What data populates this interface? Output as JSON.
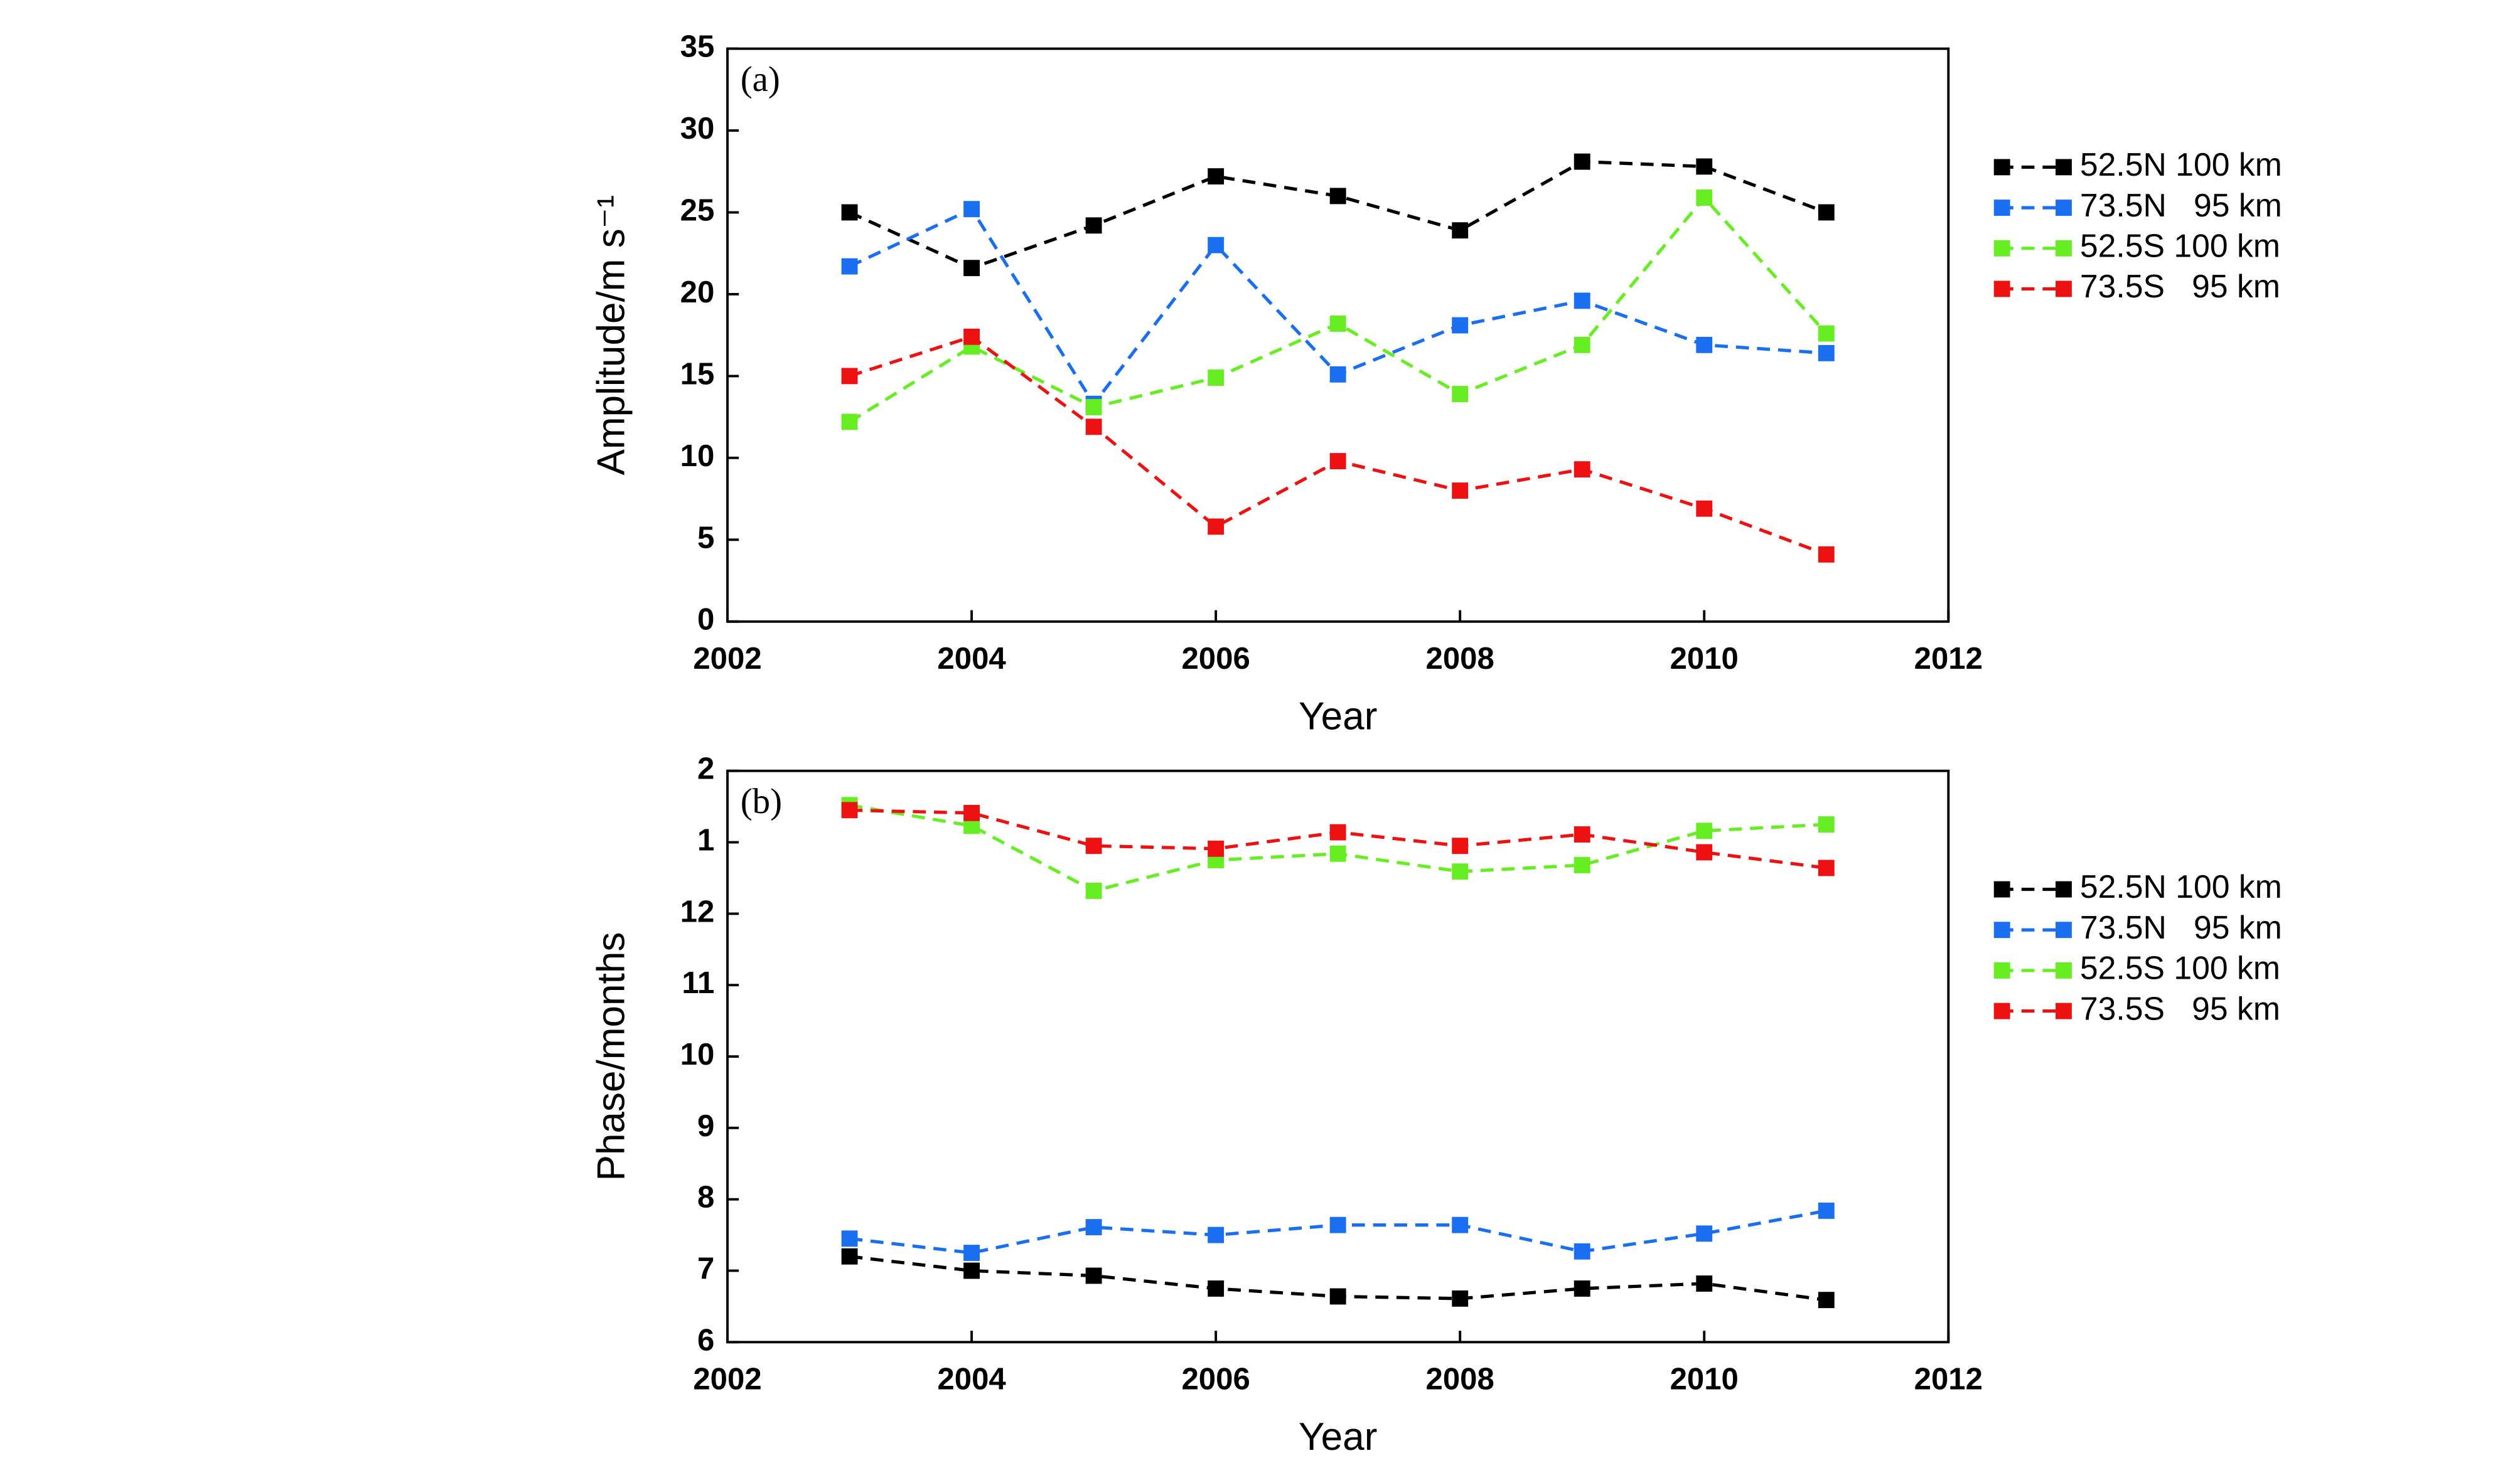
{
  "chart_data": [
    {
      "type": "line",
      "annotation": "(a)",
      "xlabel": "Year",
      "ylabel": "Amplitude/m s⁻¹",
      "x": [
        2003,
        2004,
        2005,
        2006,
        2007,
        2008,
        2009,
        2010,
        2011
      ],
      "xlim": [
        2002,
        2012
      ],
      "xticks": [
        2002,
        2004,
        2006,
        2008,
        2010,
        2012
      ],
      "ylim": [
        0,
        35
      ],
      "yticks": [
        0,
        5,
        10,
        15,
        20,
        25,
        30,
        35
      ],
      "line_style": "dashed",
      "marker": "square",
      "grid": false,
      "series": [
        {
          "name": "52.5N 100 km",
          "color": "#000000",
          "values": [
            25.0,
            21.6,
            24.2,
            27.2,
            26.0,
            23.9,
            28.1,
            27.8,
            25.0
          ]
        },
        {
          "name": "73.5N   95 km",
          "color": "#1a6ef0",
          "values": [
            21.7,
            25.2,
            13.3,
            23.0,
            15.1,
            18.1,
            19.6,
            16.9,
            16.4
          ]
        },
        {
          "name": "52.5S 100 km",
          "color": "#66ee22",
          "values": [
            12.2,
            16.8,
            13.1,
            14.9,
            18.2,
            13.9,
            16.9,
            25.9,
            17.6
          ]
        },
        {
          "name": "73.5S   95 km",
          "color": "#ee1111",
          "values": [
            15.0,
            17.4,
            11.9,
            5.8,
            9.8,
            8.0,
            9.3,
            6.9,
            4.1
          ]
        }
      ]
    },
    {
      "type": "line",
      "annotation": "(b)",
      "xlabel": "Year",
      "ylabel": "Phase/months",
      "x": [
        2003,
        2004,
        2005,
        2006,
        2007,
        2008,
        2009,
        2010,
        2011
      ],
      "xlim": [
        2002,
        2012
      ],
      "xticks": [
        2002,
        2004,
        2006,
        2008,
        2010,
        2012
      ],
      "ylim": [
        6,
        14
      ],
      "yticks": [
        6,
        7,
        8,
        9,
        10,
        11,
        12,
        {
          "value": 13,
          "label": "1"
        },
        {
          "value": 14,
          "label": "2"
        }
      ],
      "line_style": "dashed",
      "marker": "square",
      "grid": false,
      "series": [
        {
          "name": "52.5N 100 km",
          "color": "#000000",
          "values": [
            7.2,
            7.0,
            6.93,
            6.75,
            6.64,
            6.61,
            6.75,
            6.82,
            6.59
          ]
        },
        {
          "name": "73.5N   95 km",
          "color": "#1a6ef0",
          "values": [
            7.45,
            7.25,
            7.61,
            7.5,
            7.64,
            7.64,
            7.27,
            7.52,
            7.84
          ]
        },
        {
          "name": "52.5S 100 km",
          "color": "#66ee22",
          "values": [
            13.52,
            13.23,
            12.32,
            12.75,
            12.84,
            12.59,
            12.68,
            13.16,
            13.25
          ]
        },
        {
          "name": "73.5S   95 km",
          "color": "#ee1111",
          "values": [
            13.45,
            13.41,
            12.95,
            12.91,
            13.14,
            12.95,
            13.11,
            12.86,
            12.64
          ]
        }
      ]
    }
  ]
}
